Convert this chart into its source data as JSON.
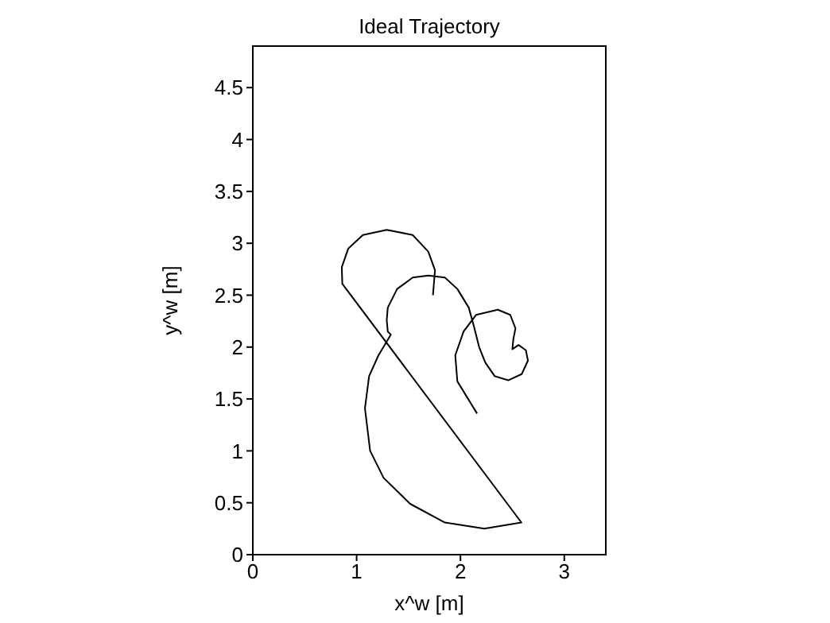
{
  "chart_data": {
    "type": "line",
    "title": "Ideal Trajectory",
    "xlabel": "x^w [m]",
    "ylabel": "y^w [m]",
    "xlim": [
      0,
      3.4
    ],
    "ylim": [
      0,
      4.9
    ],
    "xticks": [
      0,
      1,
      2,
      3
    ],
    "yticks": [
      0,
      0.5,
      1,
      1.5,
      2,
      2.5,
      3,
      3.5,
      4,
      4.5
    ],
    "marker": "none",
    "line_style": "solid",
    "series": [
      {
        "color": "#000000",
        "x": [
          1.735,
          1.755,
          1.69,
          1.54,
          1.29,
          1.06,
          0.92,
          0.857,
          0.862,
          2.587,
          2.23,
          1.85,
          1.515,
          1.26,
          1.13,
          1.08,
          1.12,
          1.21,
          1.33,
          1.3,
          1.29,
          1.3,
          1.39,
          1.54,
          1.69,
          1.85,
          1.97,
          2.08,
          2.13,
          2.18,
          2.24,
          2.33,
          2.46,
          2.59,
          2.65,
          2.63,
          2.56,
          2.5,
          2.51,
          2.53,
          2.48,
          2.36,
          2.15,
          2.03,
          1.95,
          1.97,
          2.16
        ],
        "values": [
          2.5,
          2.74,
          2.92,
          3.08,
          3.13,
          3.08,
          2.95,
          2.77,
          2.61,
          0.31,
          0.25,
          0.31,
          0.49,
          0.74,
          1.0,
          1.41,
          1.72,
          1.92,
          2.12,
          2.15,
          2.26,
          2.38,
          2.56,
          2.67,
          2.69,
          2.67,
          2.56,
          2.38,
          2.2,
          2.0,
          1.85,
          1.72,
          1.68,
          1.74,
          1.87,
          1.97,
          2.02,
          1.98,
          2.08,
          2.18,
          2.31,
          2.36,
          2.31,
          2.15,
          1.92,
          1.67,
          1.36
        ]
      }
    ]
  }
}
